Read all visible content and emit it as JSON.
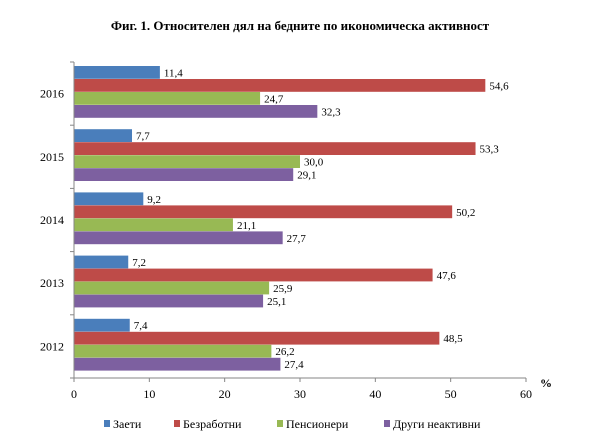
{
  "chart_data": {
    "type": "bar",
    "orientation": "horizontal",
    "title": "Фиг. 1. Относителен дял на бедните по икономическа активност",
    "categories": [
      "2016",
      "2015",
      "2014",
      "2013",
      "2012"
    ],
    "series": [
      {
        "name": "Заети",
        "color": "#4a7ebb",
        "values": [
          11.4,
          7.7,
          9.2,
          7.2,
          7.4
        ],
        "labels": [
          "11,4",
          "7,7",
          "9,2",
          "7,2",
          "7,4"
        ]
      },
      {
        "name": "Безработни",
        "color": "#be4b48",
        "values": [
          54.6,
          53.3,
          50.2,
          47.6,
          48.5
        ],
        "labels": [
          "54,6",
          "53,3",
          "50,2",
          "47,6",
          "48,5"
        ]
      },
      {
        "name": "Пенсионери",
        "color": "#98b954",
        "values": [
          24.7,
          30.0,
          21.1,
          25.9,
          26.2
        ],
        "labels": [
          "24,7",
          "30,0",
          "21,1",
          "25,9",
          "26,2"
        ]
      },
      {
        "name": "Други неактивни",
        "color": "#7d60a0",
        "values": [
          32.3,
          29.1,
          27.7,
          25.1,
          27.4
        ],
        "labels": [
          "32,3",
          "29,1",
          "27,7",
          "25,1",
          "27,4"
        ]
      }
    ],
    "xlim": [
      0,
      60
    ],
    "xticks": [
      "0",
      "10",
      "20",
      "30",
      "40",
      "50",
      "60"
    ],
    "xunit": "%",
    "grid": false,
    "legend_position": "bottom"
  }
}
